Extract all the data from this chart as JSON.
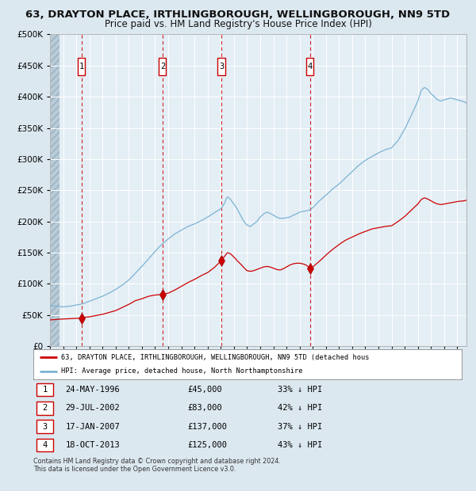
{
  "title": "63, DRAYTON PLACE, IRTHLINGBOROUGH, WELLINGBOROUGH, NN9 5TD",
  "subtitle": "Price paid vs. HM Land Registry's House Price Index (HPI)",
  "xlim": [
    1994.0,
    2025.7
  ],
  "ylim": [
    0,
    500000
  ],
  "hpi_color": "#7ab3d4",
  "price_color": "#cc0000",
  "bg_color": "#dce8f0",
  "plot_bg": "#e4eef5",
  "grid_color": "#ffffff",
  "sale_dates": [
    1996.39,
    2002.57,
    2007.04,
    2013.79
  ],
  "sale_prices": [
    45000,
    83000,
    137000,
    125000
  ],
  "sale_labels": [
    "1",
    "2",
    "3",
    "4"
  ],
  "sale_date_strs": [
    "24-MAY-1996",
    "29-JUL-2002",
    "17-JAN-2007",
    "18-OCT-2013"
  ],
  "sale_price_strs": [
    "£45,000",
    "£83,000",
    "£137,000",
    "£125,000"
  ],
  "sale_hpi_strs": [
    "33% ↓ HPI",
    "42% ↓ HPI",
    "37% ↓ HPI",
    "43% ↓ HPI"
  ],
  "legend_line1": "63, DRAYTON PLACE, IRTHLINGBOROUGH, WELLINGBOROUGH, NN9 5TD (detached hous",
  "legend_line2": "HPI: Average price, detached house, North Northamptonshire",
  "footer": "Contains HM Land Registry data © Crown copyright and database right 2024.\nThis data is licensed under the Open Government Licence v3.0.",
  "title_fontsize": 9.5,
  "subtitle_fontsize": 8.5
}
